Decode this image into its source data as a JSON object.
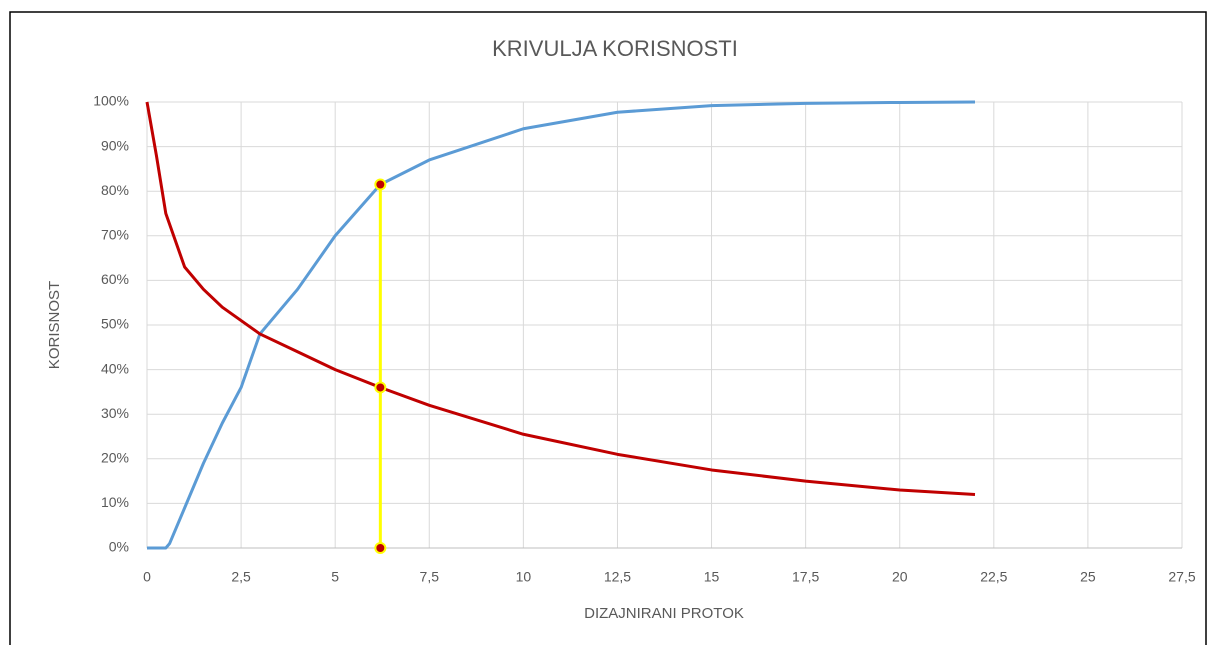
{
  "chart_data": {
    "type": "line",
    "title": "KRIVULJA KORISNOSTI",
    "x_label": "DIZAJNIRANI PROTOK",
    "y_label": "KORISNOST",
    "xlim": [
      0,
      27.5
    ],
    "xticks": [
      0,
      {
        "value": 2.5,
        "label": "2,5"
      },
      5,
      {
        "value": 7.5,
        "label": "7,5"
      },
      10,
      {
        "value": 12.5,
        "label": "12,5"
      },
      15,
      {
        "value": 17.5,
        "label": "17,5"
      },
      20,
      {
        "value": 22.5,
        "label": "22,5"
      },
      25,
      {
        "value": 27.5,
        "label": "27,5"
      }
    ],
    "ylim": [
      0,
      100
    ],
    "yticks": [
      {
        "value": 0,
        "label": "0%"
      },
      {
        "value": 10,
        "label": "10%"
      },
      {
        "value": 20,
        "label": "20%"
      },
      {
        "value": 30,
        "label": "30%"
      },
      {
        "value": 40,
        "label": "40%"
      },
      {
        "value": 50,
        "label": "50%"
      },
      {
        "value": 60,
        "label": "60%"
      },
      {
        "value": 70,
        "label": "70%"
      },
      {
        "value": 80,
        "label": "80%"
      },
      {
        "value": 90,
        "label": "90%"
      },
      {
        "value": 100,
        "label": "100%"
      }
    ],
    "grid": true,
    "series": [
      {
        "color": "#5b9bd5",
        "x": [
          0,
          0.5,
          0.6,
          1,
          1.5,
          2,
          2.5,
          3,
          4,
          5,
          6.2,
          7.5,
          10,
          12.5,
          15,
          17.5,
          20,
          22
        ],
        "values": [
          0,
          0,
          1,
          9,
          19,
          28,
          36,
          48,
          58,
          70,
          81.5,
          87,
          94,
          97.7,
          99.2,
          99.7,
          99.9,
          100
        ]
      },
      {
        "color": "#c00000",
        "x": [
          0,
          0.25,
          0.5,
          1,
          1.5,
          2,
          2.5,
          3,
          4,
          5,
          6.2,
          7.5,
          10,
          12.5,
          15,
          17.5,
          20,
          22
        ],
        "values": [
          100,
          88,
          75,
          63,
          58,
          54,
          51,
          48,
          44,
          40,
          36,
          32,
          25.5,
          21,
          17.5,
          15,
          13,
          12
        ]
      },
      {
        "color": "#ffff00",
        "marker_color": "#c00000",
        "x": [
          6.2,
          6.2,
          6.2
        ],
        "values": [
          0,
          36,
          81.5
        ]
      }
    ]
  }
}
